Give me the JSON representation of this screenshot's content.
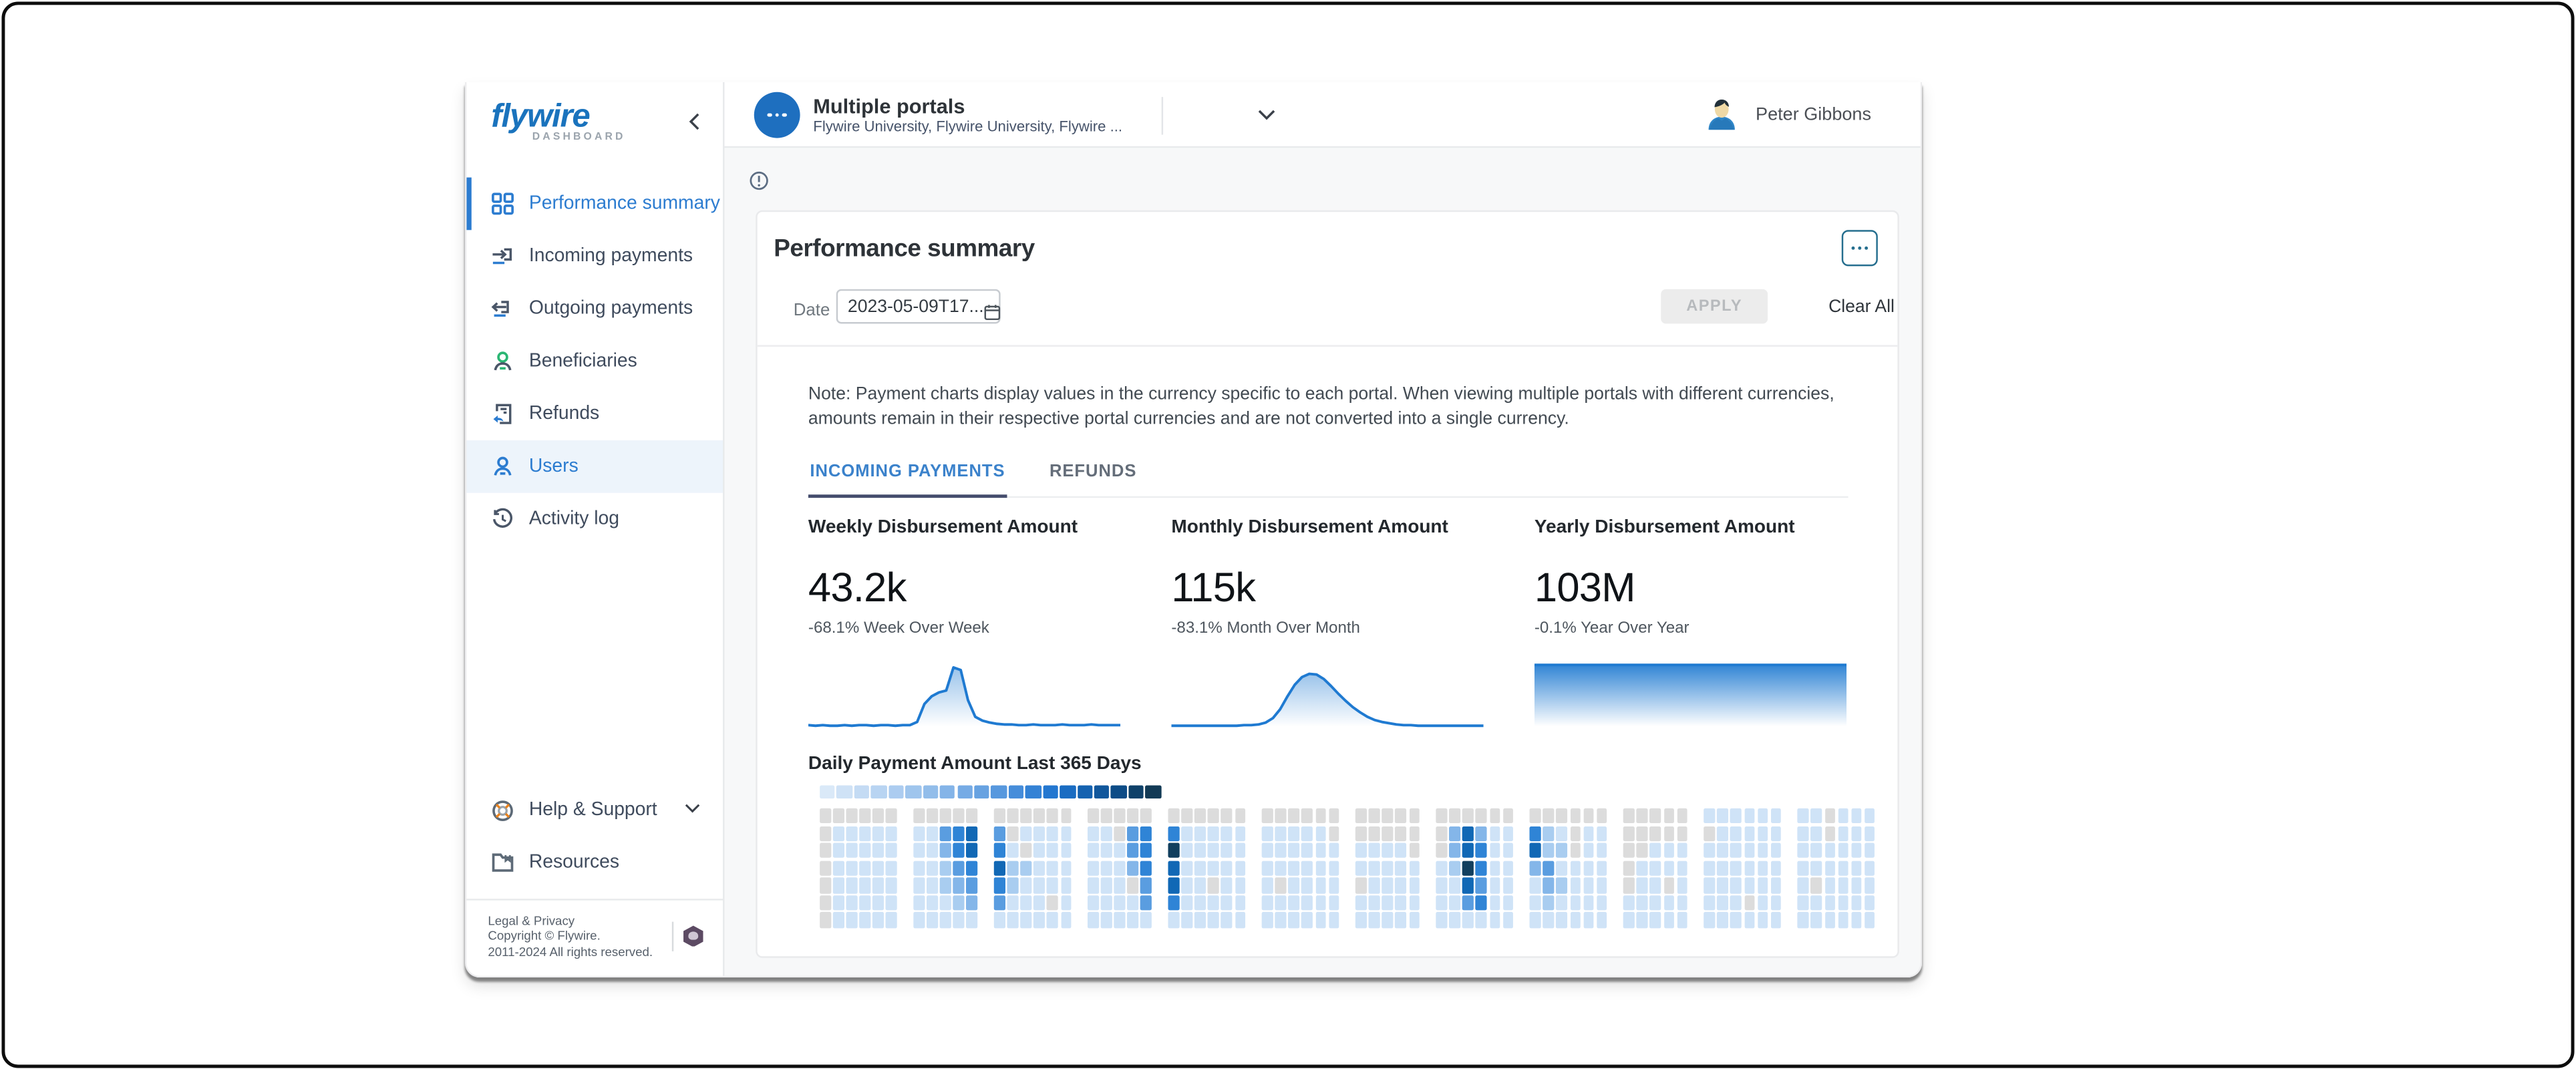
{
  "colors": {
    "brand_blue": "#1a73bd",
    "accent_blue": "#1f7ad1",
    "active_nav": "#2c7cd0",
    "tab_underline": "#454d6d",
    "menu_btn_teal": "#256e8e",
    "heat_gray": "#dcdcdc"
  },
  "sidebar": {
    "logo_text": "flywire",
    "logo_sub": "DASHBOARD",
    "items": [
      {
        "label": "Performance summary",
        "icon": "grid-icon",
        "state": "active"
      },
      {
        "label": "Incoming payments",
        "icon": "incoming-arrow-icon",
        "state": ""
      },
      {
        "label": "Outgoing payments",
        "icon": "outgoing-arrow-icon",
        "state": ""
      },
      {
        "label": "Beneficiaries",
        "icon": "person-green-icon",
        "state": ""
      },
      {
        "label": "Refunds",
        "icon": "refund-doc-icon",
        "state": ""
      },
      {
        "label": "Users",
        "icon": "person-blue-icon",
        "state": "hilite"
      },
      {
        "label": "Activity log",
        "icon": "history-clock-icon",
        "state": ""
      }
    ],
    "footer_items": [
      {
        "label": "Help & Support",
        "icon": "lifebuoy-icon",
        "has_chevron": true
      },
      {
        "label": "Resources",
        "icon": "folder-bookmark-icon",
        "has_chevron": false
      }
    ],
    "legal_lines": [
      "Legal & Privacy",
      "Copyright © Flywire.",
      "2011-2024 All rights reserved."
    ]
  },
  "header": {
    "portal_title": "Multiple portals",
    "portal_subtitle": "Flywire University, Flywire University, Flywire ...",
    "user_name": "Peter Gibbons"
  },
  "main": {
    "card_title": "Performance summary",
    "filter": {
      "date_label": "Date",
      "date_value": "2023-05-09T17...",
      "apply_label": "APPLY",
      "clear_label": "Clear All"
    },
    "note": "Note: Payment charts display values in the currency specific to each portal. When viewing multiple portals with different currencies, amounts remain in their respective portal currencies and are not converted into a single currency.",
    "tabs": [
      {
        "label": "INCOMING PAYMENTS",
        "active": true
      },
      {
        "label": "REFUNDS",
        "active": false
      }
    ]
  },
  "chart_data": [
    {
      "type": "area",
      "id": "weekly",
      "title": "Weekly Disbursement Amount",
      "value": "43.2k",
      "delta": "-68.1% Week Over Week",
      "line_color": "#1f7ad1",
      "fill_top_opacity": 0.45,
      "ylim": [
        0,
        100
      ],
      "y_values": [
        3,
        2,
        3,
        2,
        2,
        3,
        2,
        3,
        3,
        2,
        3,
        3,
        2,
        3,
        3,
        8,
        36,
        48,
        54,
        57,
        93,
        89,
        42,
        16,
        10,
        7,
        5,
        4,
        4,
        3,
        3,
        4,
        3,
        3,
        3,
        4,
        3,
        3,
        3,
        4,
        3,
        3,
        3,
        3
      ]
    },
    {
      "type": "area",
      "id": "monthly",
      "title": "Monthly Disbursement Amount",
      "value": "115k",
      "delta": "-83.1% Month Over Month",
      "line_color": "#1f7ad1",
      "fill_top_opacity": 0.45,
      "ylim": [
        0,
        100
      ],
      "y_values": [
        2,
        2,
        2,
        2,
        2,
        2,
        2,
        2,
        2,
        2,
        3,
        3,
        4,
        7,
        14,
        28,
        48,
        66,
        78,
        83,
        82,
        75,
        64,
        52,
        41,
        31,
        23,
        16,
        11,
        8,
        6,
        4,
        3,
        3,
        2,
        2,
        2,
        2,
        2,
        2,
        2,
        2,
        2,
        2
      ]
    },
    {
      "type": "area",
      "id": "yearly",
      "title": "Yearly Disbursement Amount",
      "value": "103M",
      "delta": "-0.1% Year Over Year",
      "line_color": "#1f7ad1",
      "fill_top_opacity": 0.92,
      "ylim": [
        0,
        100
      ],
      "y_values": [
        97,
        97,
        97,
        97,
        97,
        97,
        97,
        97,
        97,
        97,
        97,
        97
      ]
    },
    {
      "type": "heatmap",
      "id": "daily",
      "title": "Daily Payment Amount Last 365 Days",
      "legend_colors": [
        "#dae9f8",
        "#cfe2f6",
        "#c4dbf4",
        "#b8d4f2",
        "#acccf0",
        "#9fc5ed",
        "#92bdea",
        "#84b4e8",
        "#76abe5",
        "#67a2e1",
        "#5798de",
        "#468dda",
        "#3482d5",
        "#2377d0",
        "#1a6cc2",
        "#1562b0",
        "#11579c",
        "#0d4c87",
        "#0f4169",
        "#123a55"
      ],
      "palette": {
        "g": "#dcdcdc",
        "1": "#cfe3f7",
        "2": "#a9cdf0",
        "3": "#84b6e9",
        "4": "#5a9de0",
        "5": "#2f84d6",
        "6": "#1168b5",
        "7": "#123f5e",
        ".": "transparent"
      },
      "group_sizes": [
        6,
        5,
        6,
        5,
        6,
        6,
        5,
        6,
        6,
        5,
        6,
        6
      ],
      "rows": [
        [
          "gggggg",
          "ggggg",
          "gggggg",
          "ggggg",
          "gggggg",
          "gggggg",
          "ggggg",
          "gggggg",
          "gggggg",
          "ggggg",
          "111111",
          "11g111"
        ],
        [
          "g11111",
          "11456",
          "4g1111",
          "11g45",
          "511111",
          "11111g",
          "ggggg",
          "g36311",
          "521g11",
          "ggggg",
          "g11111",
          "11g111"
        ],
        [
          "g11111",
          "11356",
          "51g111",
          "11145",
          "711111",
          "111111",
          "1111g",
          "g36511",
          "622g11",
          "gg111",
          "111111",
          "111111"
        ],
        [
          "g11111",
          "11245",
          "622111",
          "11135",
          "611111",
          "111111",
          "11111",
          "127511",
          "341111",
          "g1111",
          "111111",
          "111111"
        ],
        [
          "g11111",
          "11234",
          "521111",
          "111g4",
          "611g11",
          "1g1111",
          "g1111",
          "116411",
          "132111",
          "g11g1",
          "111111",
          "1g1111"
        ],
        [
          "g11111",
          "11123",
          "4111g1",
          "11114",
          "511111",
          "111111",
          "11111",
          "114511",
          "121111",
          "11111",
          "111g11",
          "111111"
        ],
        [
          "g11111",
          "11111",
          "111111",
          "11111",
          "111111",
          "111111",
          "11111",
          "111111",
          "111111",
          "11111",
          "111111",
          "111111"
        ]
      ]
    }
  ]
}
